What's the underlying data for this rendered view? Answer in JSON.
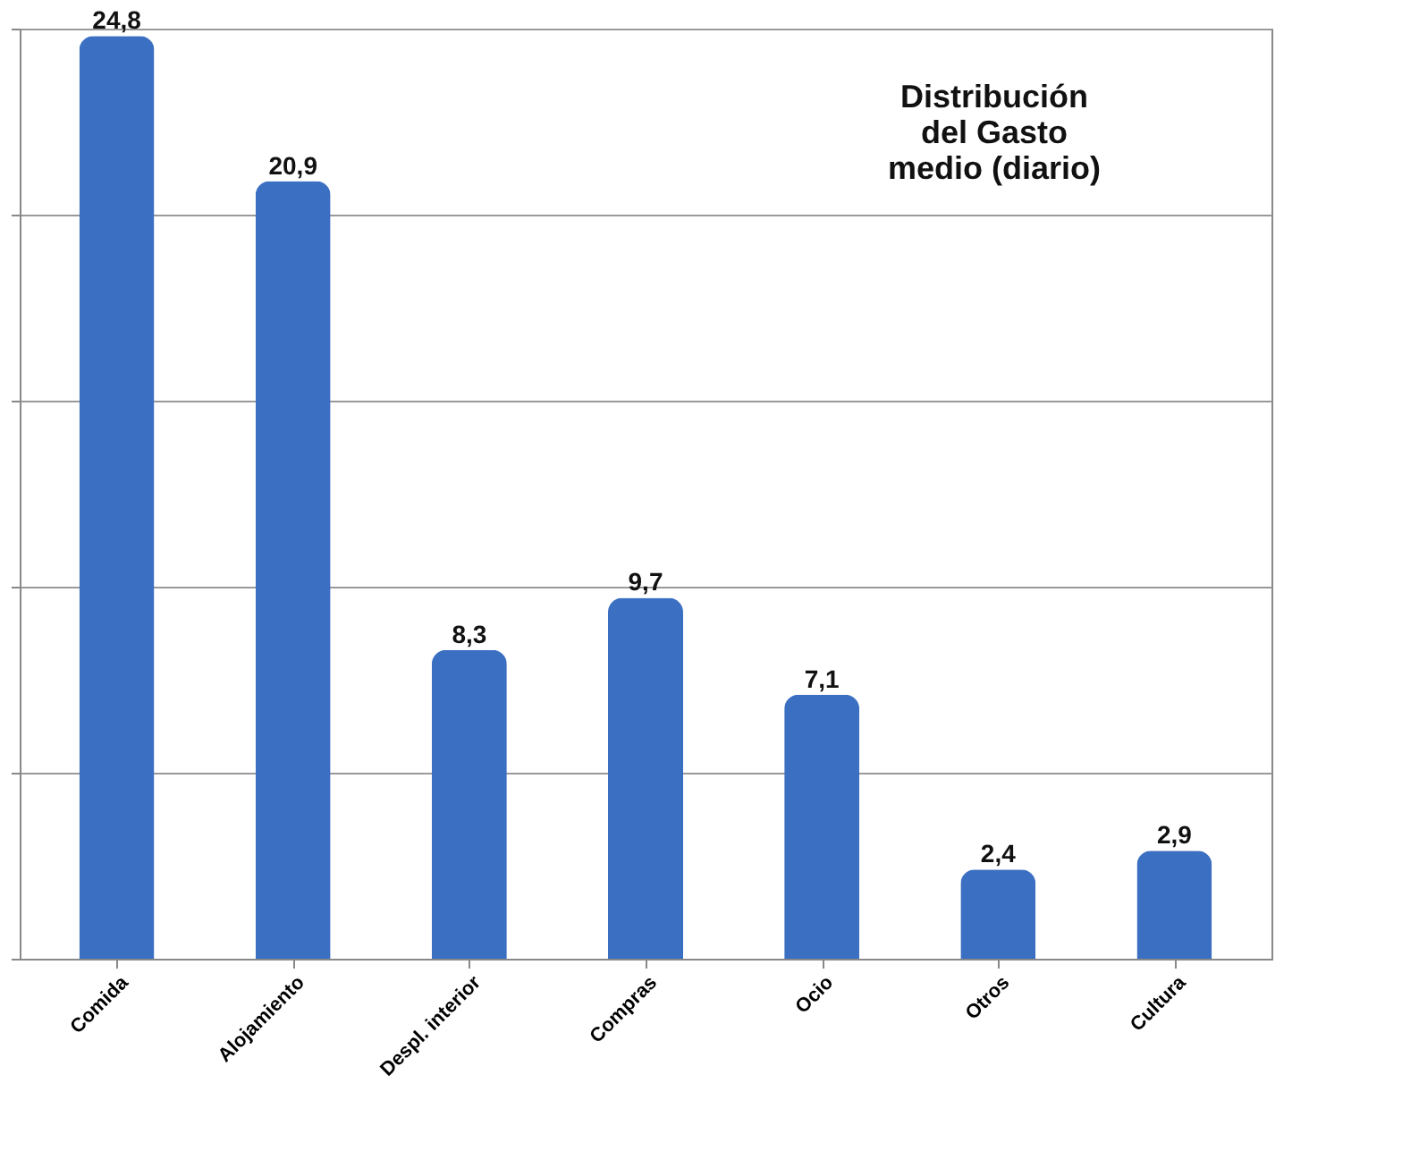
{
  "chart_data": {
    "type": "bar",
    "title": "Distribución\ndel Gasto\nmedio (diario)",
    "categories": [
      "Comida",
      "Alojamiento",
      "Despl. interior",
      "Compras",
      "Ocio",
      "Otros",
      "Cultura"
    ],
    "values": [
      24.8,
      20.9,
      8.3,
      9.7,
      7.1,
      2.4,
      2.9
    ],
    "value_labels": [
      "24,8",
      "20,9",
      "8,3",
      "9,7",
      "7,1",
      "2,4",
      "2,9"
    ],
    "color": "#3b6fc2",
    "ylim": [
      0,
      25
    ],
    "yticks": [
      {
        "value": 0,
        "label": null
      },
      {
        "value": 5,
        "label": null
      },
      {
        "value": 10,
        "label": null
      },
      {
        "value": 15,
        "label": null
      },
      {
        "value": 20,
        "label": null
      },
      {
        "value": 25,
        "label": null
      }
    ],
    "tick_labels": "x",
    "grid": "y"
  }
}
